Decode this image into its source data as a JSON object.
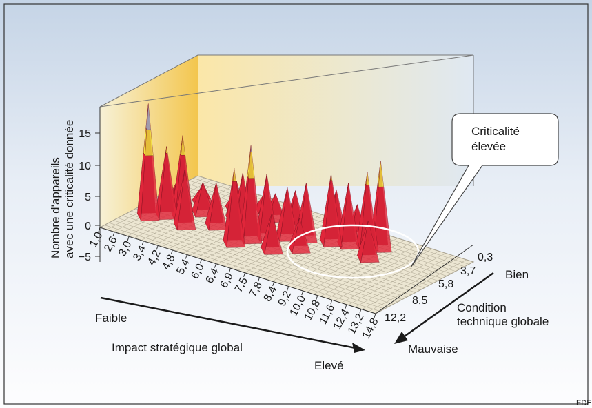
{
  "chart_data": {
    "type": "surface",
    "zlabel": [
      "Nombre d'appareils",
      "avec une criticalité donnée"
    ],
    "z_ticks": [
      "15",
      "10",
      "5",
      "0",
      "−5"
    ],
    "zlim": [
      -5,
      18
    ],
    "x_axis": {
      "label": "Impact stratégique global",
      "end_low": "Faible",
      "end_high": "Elevé",
      "ticks": [
        "1,0",
        "2,6",
        "3,0",
        "3,4",
        "4,2",
        "4,8",
        "5,4",
        "6,0",
        "6,4",
        "6,9",
        "7,5",
        "7,8",
        "8,4",
        "9,2",
        "10,0",
        "10,8",
        "11,6",
        "12,4",
        "13,2",
        "14,8"
      ]
    },
    "y_axis": {
      "label": [
        "Condition",
        "technique globale"
      ],
      "end_good": "Bien",
      "end_bad": "Mauvaise",
      "ticks": [
        "0,3",
        "3,7",
        "5,8",
        "8,5",
        "12,2"
      ]
    },
    "callout": [
      "Criticalité",
      "élevée"
    ],
    "credit": "EDF",
    "peaks": [
      {
        "x": 1.9,
        "y": 8.5,
        "z": 18
      },
      {
        "x": 2.4,
        "y": 7.5,
        "z": 11
      },
      {
        "x": 3.0,
        "y": 7.0,
        "z": 13
      },
      {
        "x": 3.6,
        "y": 8.2,
        "z": 9
      },
      {
        "x": 4.6,
        "y": 6.8,
        "z": 7
      },
      {
        "x": 5.6,
        "y": 6.0,
        "z": 9
      },
      {
        "x": 6.2,
        "y": 8.5,
        "z": 12
      },
      {
        "x": 6.5,
        "y": 7.2,
        "z": 15
      },
      {
        "x": 6.8,
        "y": 6.0,
        "z": 10
      },
      {
        "x": 7.5,
        "y": 5.2,
        "z": 8
      },
      {
        "x": 8.2,
        "y": 4.6,
        "z": 9
      },
      {
        "x": 9.2,
        "y": 4.0,
        "z": 11
      },
      {
        "x": 9.9,
        "y": 3.6,
        "z": 10
      },
      {
        "x": 10.6,
        "y": 3.0,
        "z": 12
      },
      {
        "x": 11.1,
        "y": 2.6,
        "z": 14
      },
      {
        "x": 4.8,
        "y": 4.8,
        "z": 6
      },
      {
        "x": 3.4,
        "y": 5.5,
        "z": 5
      },
      {
        "x": 2.2,
        "y": 5.8,
        "z": 4
      },
      {
        "x": 7.2,
        "y": 3.5,
        "z": 6
      },
      {
        "x": 8.8,
        "y": 2.4,
        "z": 7
      },
      {
        "x": 9.6,
        "y": 1.8,
        "z": 5
      },
      {
        "x": 6.0,
        "y": 3.0,
        "z": 4
      },
      {
        "x": 10.4,
        "y": 1.6,
        "z": 4
      },
      {
        "x": 5.2,
        "y": 2.2,
        "z": 3
      },
      {
        "x": 7.8,
        "y": 7.8,
        "z": 6
      },
      {
        "x": 4.2,
        "y": 3.4,
        "z": 3
      },
      {
        "x": 2.8,
        "y": 4.0,
        "z": 3
      },
      {
        "x": 8.6,
        "y": 6.4,
        "z": 5
      },
      {
        "x": 11.3,
        "y": 4.6,
        "z": 6
      }
    ],
    "bands": [
      {
        "from": 0,
        "to": 10,
        "color": "#e0263a"
      },
      {
        "from": 10,
        "to": 14,
        "color": "#f2e23c"
      },
      {
        "from": 14,
        "to": 18,
        "color": "#9fb7c9"
      }
    ]
  }
}
